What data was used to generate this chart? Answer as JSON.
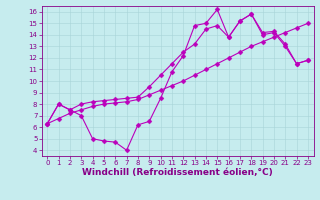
{
  "xlabel": "Windchill (Refroidissement éolien,°C)",
  "xlim": [
    -0.5,
    23.5
  ],
  "ylim": [
    3.5,
    16.5
  ],
  "xticks": [
    0,
    1,
    2,
    3,
    4,
    5,
    6,
    7,
    8,
    9,
    10,
    11,
    12,
    13,
    14,
    15,
    16,
    17,
    18,
    19,
    20,
    21,
    22,
    23
  ],
  "yticks": [
    4,
    5,
    6,
    7,
    8,
    9,
    10,
    11,
    12,
    13,
    14,
    15,
    16
  ],
  "background_color": "#c6ecee",
  "grid_color": "#a8d4d8",
  "line_color": "#bb00bb",
  "line1_x": [
    0,
    1,
    2,
    3,
    4,
    5,
    6,
    7,
    8,
    9,
    10,
    11,
    12,
    13,
    14,
    15,
    16,
    17,
    18,
    19,
    20,
    21,
    22,
    23
  ],
  "line1_y": [
    6.3,
    8.0,
    7.5,
    7.0,
    5.0,
    4.8,
    4.7,
    4.0,
    6.2,
    6.5,
    8.5,
    10.8,
    12.2,
    14.8,
    15.0,
    16.2,
    13.8,
    15.2,
    15.8,
    14.2,
    14.3,
    13.2,
    11.5,
    11.8
  ],
  "line2_x": [
    0,
    1,
    2,
    3,
    4,
    5,
    6,
    7,
    8,
    9,
    10,
    11,
    12,
    13,
    14,
    15,
    16,
    17,
    18,
    19,
    20,
    21,
    22,
    23
  ],
  "line2_y": [
    6.3,
    8.0,
    7.5,
    8.0,
    8.2,
    8.3,
    8.4,
    8.5,
    8.6,
    9.5,
    10.5,
    11.5,
    12.5,
    13.2,
    14.5,
    14.8,
    13.8,
    15.2,
    15.8,
    14.0,
    14.2,
    13.0,
    11.5,
    11.8
  ],
  "line3_x": [
    0,
    1,
    2,
    3,
    4,
    5,
    6,
    7,
    8,
    9,
    10,
    11,
    12,
    13,
    14,
    15,
    16,
    17,
    18,
    19,
    20,
    21,
    22,
    23
  ],
  "line3_y": [
    6.3,
    6.75,
    7.2,
    7.5,
    7.8,
    8.0,
    8.1,
    8.2,
    8.4,
    8.8,
    9.2,
    9.6,
    10.0,
    10.5,
    11.0,
    11.5,
    12.0,
    12.5,
    13.0,
    13.4,
    13.8,
    14.2,
    14.6,
    15.0
  ],
  "marker": "D",
  "markersize": 2.5,
  "linewidth": 0.8,
  "tick_fontsize": 5.0,
  "xlabel_fontsize": 6.5,
  "axis_color": "#880088"
}
